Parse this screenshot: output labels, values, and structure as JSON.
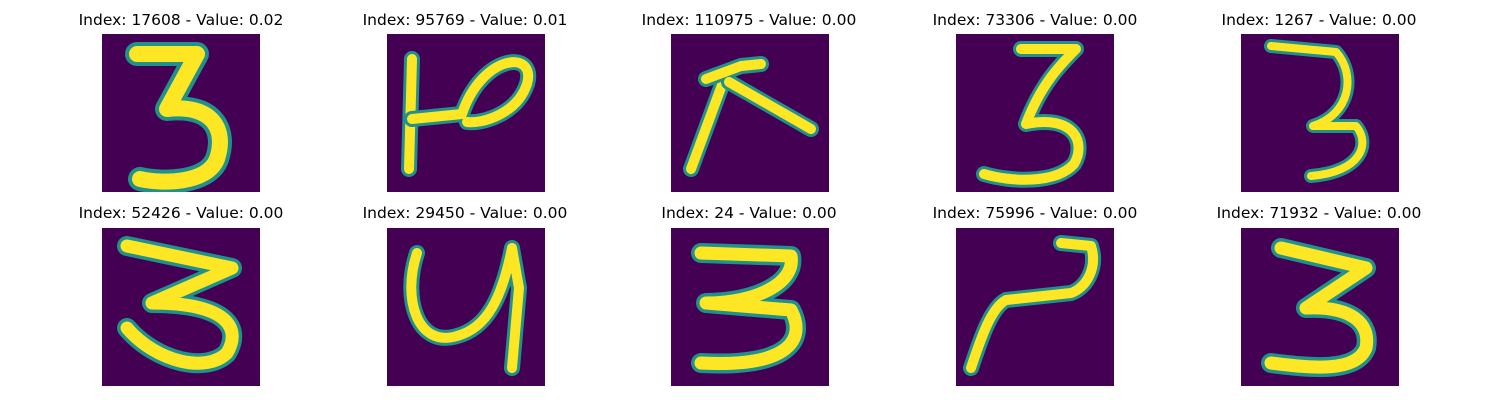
{
  "panels": [
    {
      "title": "Index: 17608 - Value: 0.02",
      "glyph": "digit 3"
    },
    {
      "title": "Index: 95769 - Value: 0.01",
      "glyph": "letter-like shape"
    },
    {
      "title": "Index: 110975 - Value: 0.00",
      "glyph": "letter-like shape"
    },
    {
      "title": "Index: 73306 - Value: 0.00",
      "glyph": "digit 3"
    },
    {
      "title": "Index: 1267 - Value: 0.00",
      "glyph": "digit 3"
    },
    {
      "title": "Index: 52426 - Value: 0.00",
      "glyph": "digit 3"
    },
    {
      "title": "Index: 29450 - Value: 0.00",
      "glyph": "digit 4"
    },
    {
      "title": "Index: 24 - Value: 0.00",
      "glyph": "digit 3"
    },
    {
      "title": "Index: 75996 - Value: 0.00",
      "glyph": "digit 2"
    },
    {
      "title": "Index: 71932 - Value: 0.00",
      "glyph": "digit 3"
    }
  ],
  "colors": {
    "background": "#440154",
    "stroke": "#fde725",
    "edge": "#21918c"
  }
}
